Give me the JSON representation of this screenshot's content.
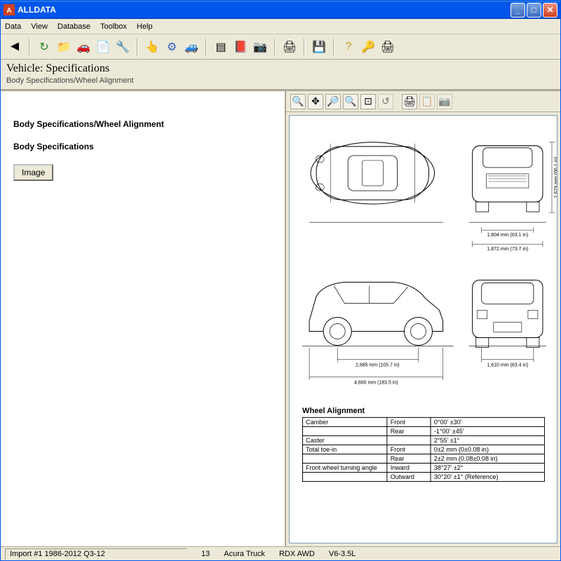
{
  "window": {
    "title": "ALLDATA"
  },
  "menus": [
    "Data",
    "View",
    "Database",
    "Toolbox",
    "Help"
  ],
  "header": {
    "title": "Vehicle:  Specifications",
    "breadcrumb": "Body Specifications/Wheel Alignment"
  },
  "leftPane": {
    "path": "Body Specifications/Wheel Alignment",
    "section": "Body Specifications",
    "imageBtn": "Image"
  },
  "diagram": {
    "dims": {
      "height": "1,679 mm (66.1 in)",
      "frontTrack": "1,604 mm (63.1 in)",
      "overallWidth": "1,872 mm (73.7 in)",
      "wheelbase": "2,685 mm (105.7 in)",
      "length": "4,660 mm (183.5 in)",
      "rearTrack": "1,610 mm (63.4 in)"
    },
    "tableTitle": "Wheel Alignment",
    "rows": [
      {
        "param": "Camber",
        "pos": "Front",
        "val": "0°00' ±30'"
      },
      {
        "param": "",
        "pos": "Rear",
        "val": "-1°00' ±45'"
      },
      {
        "param": "Caster",
        "pos": "",
        "val": "2°55' ±1°"
      },
      {
        "param": "Total toe-in",
        "pos": "Front",
        "val": "0±2 mm (0±0.08 in)"
      },
      {
        "param": "",
        "pos": "Rear",
        "val": "2±2 mm (0.08±0.08 in)"
      },
      {
        "param": "Front wheel turning angle",
        "pos": "Inward",
        "val": "38°27' ±2°"
      },
      {
        "param": "",
        "pos": "Outward",
        "val": "30°20' ±1° (Reference)"
      }
    ]
  },
  "status": {
    "db": "Import #1 1986-2012 Q3-12",
    "num": "13",
    "make": "Acura Truck",
    "model": "RDX AWD",
    "engine": "V6-3.5L"
  },
  "colors": {
    "titlebar": "#0055ea",
    "chrome": "#ece9d8",
    "border": "#aca899",
    "line": "#000000"
  }
}
